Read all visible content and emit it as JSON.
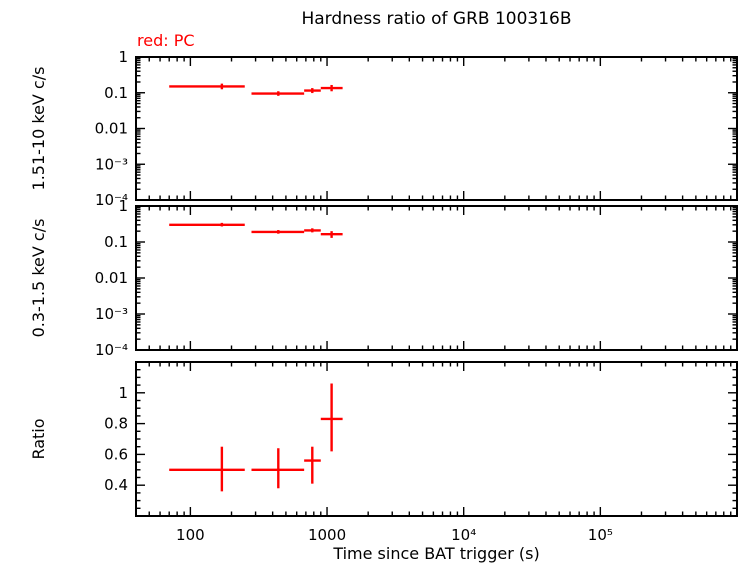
{
  "chart_data": {
    "type": "scatter",
    "title": "Hardness ratio of GRB 100316B",
    "annotation": "red: PC",
    "series_color": "#ff0000",
    "axis_color": "#000000",
    "background_color": "#ffffff",
    "xlabel": "Time since BAT trigger (s)",
    "xscale": "log",
    "xlim": [
      40,
      1000000
    ],
    "xticks": [
      {
        "value": 100,
        "label": "100"
      },
      {
        "value": 1000,
        "label": "1000"
      },
      {
        "value": 10000,
        "label": "10⁴"
      },
      {
        "value": 100000,
        "label": "10⁵"
      }
    ],
    "panels": [
      {
        "name": "hard-band",
        "ylabel": "1.51-10 keV c/s",
        "yscale": "log",
        "ylim": [
          0.0001,
          1
        ],
        "yticks": [
          {
            "value": 1,
            "label": "1"
          },
          {
            "value": 0.1,
            "label": "0.1"
          },
          {
            "value": 0.01,
            "label": "0.01"
          },
          {
            "value": 0.001,
            "label": "10⁻³"
          },
          {
            "value": 0.0001,
            "label": "10⁻⁴"
          }
        ],
        "points": [
          {
            "t": 170,
            "t_lo": 70,
            "t_hi": 250,
            "v": 0.15,
            "v_lo": 0.125,
            "v_hi": 0.18
          },
          {
            "t": 440,
            "t_lo": 280,
            "t_hi": 680,
            "v": 0.095,
            "v_lo": 0.082,
            "v_hi": 0.11
          },
          {
            "t": 780,
            "t_lo": 680,
            "t_hi": 900,
            "v": 0.115,
            "v_lo": 0.098,
            "v_hi": 0.135
          },
          {
            "t": 1080,
            "t_lo": 900,
            "t_hi": 1300,
            "v": 0.135,
            "v_lo": 0.11,
            "v_hi": 0.165
          }
        ]
      },
      {
        "name": "soft-band",
        "ylabel": "0.3-1.5 keV c/s",
        "yscale": "log",
        "ylim": [
          0.0001,
          1
        ],
        "yticks": [
          {
            "value": 1,
            "label": "1"
          },
          {
            "value": 0.1,
            "label": "0.1"
          },
          {
            "value": 0.01,
            "label": "0.01"
          },
          {
            "value": 0.001,
            "label": "10⁻³"
          },
          {
            "value": 0.0001,
            "label": "10⁻⁴"
          }
        ],
        "points": [
          {
            "t": 170,
            "t_lo": 70,
            "t_hi": 250,
            "v": 0.3,
            "v_lo": 0.27,
            "v_hi": 0.34
          },
          {
            "t": 440,
            "t_lo": 280,
            "t_hi": 680,
            "v": 0.19,
            "v_lo": 0.17,
            "v_hi": 0.215
          },
          {
            "t": 780,
            "t_lo": 680,
            "t_hi": 900,
            "v": 0.21,
            "v_lo": 0.185,
            "v_hi": 0.24
          },
          {
            "t": 1080,
            "t_lo": 900,
            "t_hi": 1300,
            "v": 0.165,
            "v_lo": 0.13,
            "v_hi": 0.2
          }
        ]
      },
      {
        "name": "ratio",
        "ylabel": "Ratio",
        "yscale": "linear",
        "ylim": [
          0.2,
          1.2
        ],
        "minor_step": 0.05,
        "yticks": [
          {
            "value": 0.4,
            "label": "0.4"
          },
          {
            "value": 0.6,
            "label": "0.6"
          },
          {
            "value": 0.8,
            "label": "0.8"
          },
          {
            "value": 1,
            "label": "1"
          }
        ],
        "points": [
          {
            "t": 170,
            "t_lo": 70,
            "t_hi": 250,
            "v": 0.5,
            "v_lo": 0.36,
            "v_hi": 0.65
          },
          {
            "t": 440,
            "t_lo": 280,
            "t_hi": 680,
            "v": 0.5,
            "v_lo": 0.38,
            "v_hi": 0.64
          },
          {
            "t": 780,
            "t_lo": 680,
            "t_hi": 900,
            "v": 0.56,
            "v_lo": 0.41,
            "v_hi": 0.65
          },
          {
            "t": 1080,
            "t_lo": 900,
            "t_hi": 1300,
            "v": 0.83,
            "v_lo": 0.62,
            "v_hi": 1.06
          }
        ]
      }
    ]
  }
}
